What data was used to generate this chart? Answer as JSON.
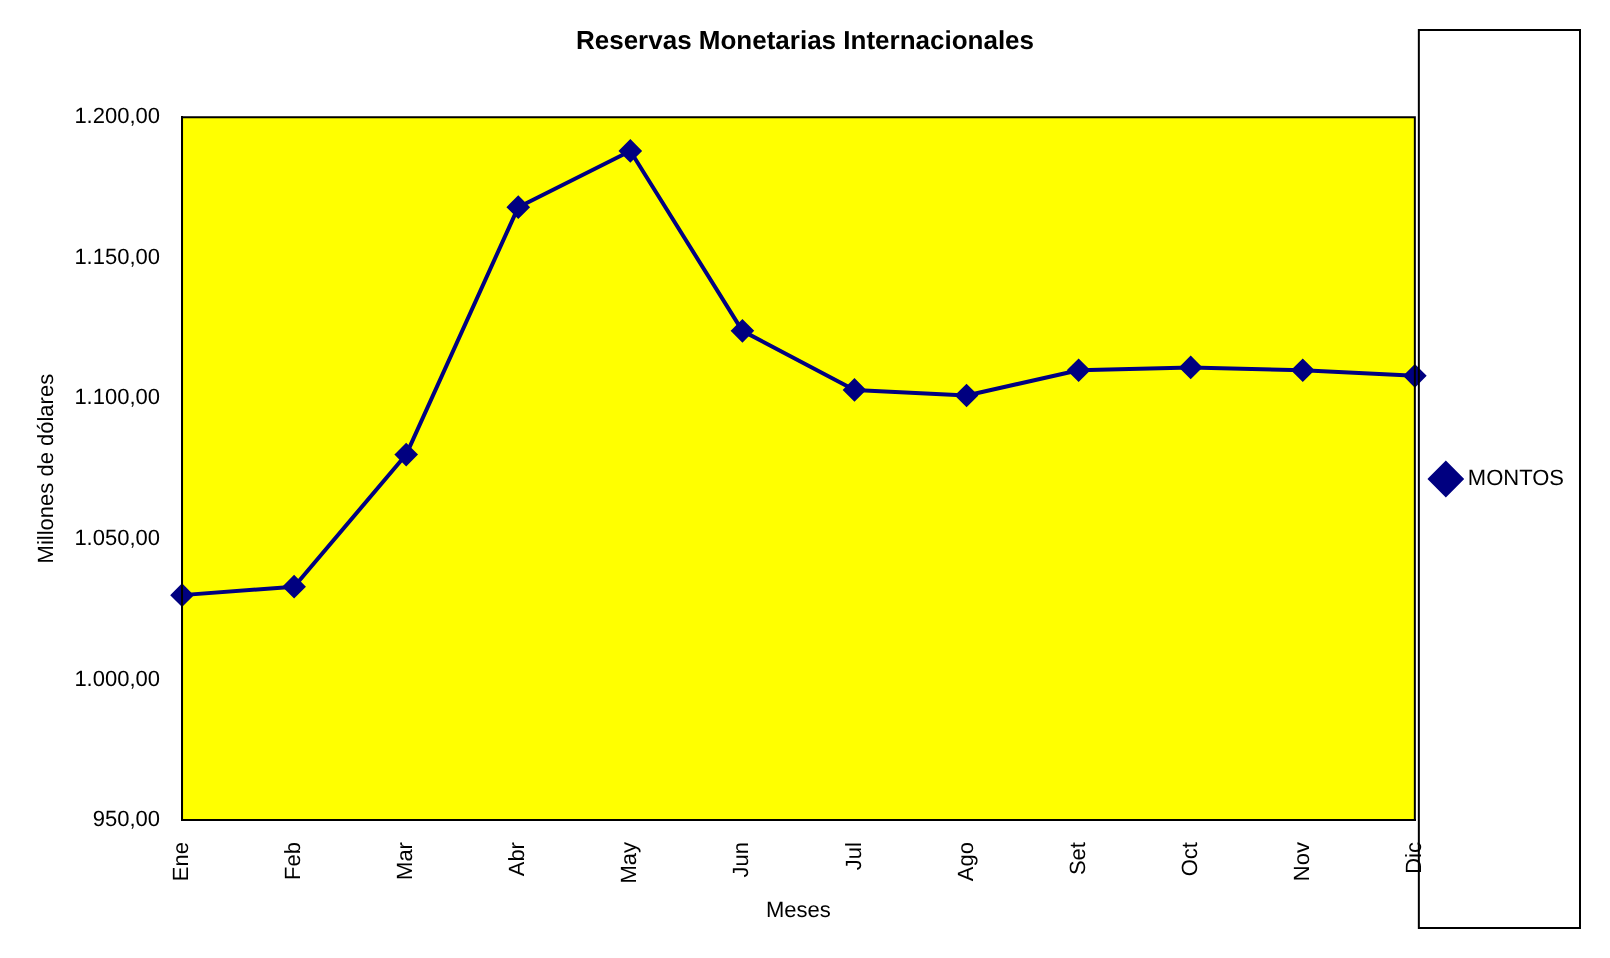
{
  "chart_data": {
    "type": "line",
    "title": "Reservas Monetarias Internacionales",
    "xlabel": "Meses",
    "ylabel": "Millones de dólares",
    "categories": [
      "Ene",
      "Feb",
      "Mar",
      "Abr",
      "May",
      "Jun",
      "Jul",
      "Ago",
      "Set",
      "Oct",
      "Nov",
      "Dic"
    ],
    "series": [
      {
        "name": "MONTOS",
        "color": "#000080",
        "values": [
          1030,
          1033,
          1080,
          1168,
          1188,
          1124,
          1103,
          1101,
          1110,
          1111,
          1110,
          1108
        ]
      }
    ],
    "ylim": [
      950,
      1200
    ],
    "yticks": [
      {
        "value": 950,
        "label": "950,00"
      },
      {
        "value": 1000,
        "label": "1.000,00"
      },
      {
        "value": 1050,
        "label": "1.050,00"
      },
      {
        "value": 1100,
        "label": "1.100,00"
      },
      {
        "value": 1150,
        "label": "1.150,00"
      },
      {
        "value": 1200,
        "label": "1.200,00"
      }
    ],
    "grid": false,
    "legend": "right",
    "marker": "diamond",
    "line_style": "solid"
  }
}
